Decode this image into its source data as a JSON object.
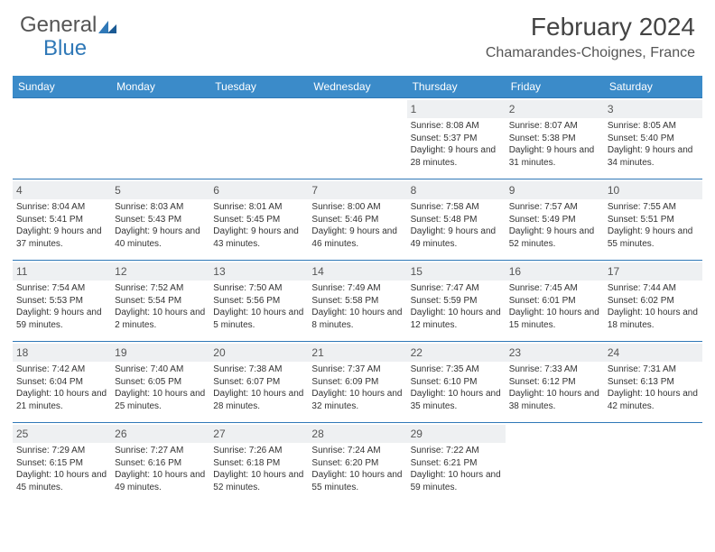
{
  "brand": {
    "left": "General",
    "right": "Blue"
  },
  "title": "February 2024",
  "location": "Chamarandes-Choignes, France",
  "colors": {
    "header_bg": "#3b8bc9",
    "border": "#2f78b7",
    "daynum_bg": "#eef0f2",
    "text": "#333333"
  },
  "dayHeaders": [
    "Sunday",
    "Monday",
    "Tuesday",
    "Wednesday",
    "Thursday",
    "Friday",
    "Saturday"
  ],
  "startOffset": 4,
  "days": [
    {
      "n": "1",
      "sr": "Sunrise: 8:08 AM",
      "ss": "Sunset: 5:37 PM",
      "dl": "Daylight: 9 hours and 28 minutes."
    },
    {
      "n": "2",
      "sr": "Sunrise: 8:07 AM",
      "ss": "Sunset: 5:38 PM",
      "dl": "Daylight: 9 hours and 31 minutes."
    },
    {
      "n": "3",
      "sr": "Sunrise: 8:05 AM",
      "ss": "Sunset: 5:40 PM",
      "dl": "Daylight: 9 hours and 34 minutes."
    },
    {
      "n": "4",
      "sr": "Sunrise: 8:04 AM",
      "ss": "Sunset: 5:41 PM",
      "dl": "Daylight: 9 hours and 37 minutes."
    },
    {
      "n": "5",
      "sr": "Sunrise: 8:03 AM",
      "ss": "Sunset: 5:43 PM",
      "dl": "Daylight: 9 hours and 40 minutes."
    },
    {
      "n": "6",
      "sr": "Sunrise: 8:01 AM",
      "ss": "Sunset: 5:45 PM",
      "dl": "Daylight: 9 hours and 43 minutes."
    },
    {
      "n": "7",
      "sr": "Sunrise: 8:00 AM",
      "ss": "Sunset: 5:46 PM",
      "dl": "Daylight: 9 hours and 46 minutes."
    },
    {
      "n": "8",
      "sr": "Sunrise: 7:58 AM",
      "ss": "Sunset: 5:48 PM",
      "dl": "Daylight: 9 hours and 49 minutes."
    },
    {
      "n": "9",
      "sr": "Sunrise: 7:57 AM",
      "ss": "Sunset: 5:49 PM",
      "dl": "Daylight: 9 hours and 52 minutes."
    },
    {
      "n": "10",
      "sr": "Sunrise: 7:55 AM",
      "ss": "Sunset: 5:51 PM",
      "dl": "Daylight: 9 hours and 55 minutes."
    },
    {
      "n": "11",
      "sr": "Sunrise: 7:54 AM",
      "ss": "Sunset: 5:53 PM",
      "dl": "Daylight: 9 hours and 59 minutes."
    },
    {
      "n": "12",
      "sr": "Sunrise: 7:52 AM",
      "ss": "Sunset: 5:54 PM",
      "dl": "Daylight: 10 hours and 2 minutes."
    },
    {
      "n": "13",
      "sr": "Sunrise: 7:50 AM",
      "ss": "Sunset: 5:56 PM",
      "dl": "Daylight: 10 hours and 5 minutes."
    },
    {
      "n": "14",
      "sr": "Sunrise: 7:49 AM",
      "ss": "Sunset: 5:58 PM",
      "dl": "Daylight: 10 hours and 8 minutes."
    },
    {
      "n": "15",
      "sr": "Sunrise: 7:47 AM",
      "ss": "Sunset: 5:59 PM",
      "dl": "Daylight: 10 hours and 12 minutes."
    },
    {
      "n": "16",
      "sr": "Sunrise: 7:45 AM",
      "ss": "Sunset: 6:01 PM",
      "dl": "Daylight: 10 hours and 15 minutes."
    },
    {
      "n": "17",
      "sr": "Sunrise: 7:44 AM",
      "ss": "Sunset: 6:02 PM",
      "dl": "Daylight: 10 hours and 18 minutes."
    },
    {
      "n": "18",
      "sr": "Sunrise: 7:42 AM",
      "ss": "Sunset: 6:04 PM",
      "dl": "Daylight: 10 hours and 21 minutes."
    },
    {
      "n": "19",
      "sr": "Sunrise: 7:40 AM",
      "ss": "Sunset: 6:05 PM",
      "dl": "Daylight: 10 hours and 25 minutes."
    },
    {
      "n": "20",
      "sr": "Sunrise: 7:38 AM",
      "ss": "Sunset: 6:07 PM",
      "dl": "Daylight: 10 hours and 28 minutes."
    },
    {
      "n": "21",
      "sr": "Sunrise: 7:37 AM",
      "ss": "Sunset: 6:09 PM",
      "dl": "Daylight: 10 hours and 32 minutes."
    },
    {
      "n": "22",
      "sr": "Sunrise: 7:35 AM",
      "ss": "Sunset: 6:10 PM",
      "dl": "Daylight: 10 hours and 35 minutes."
    },
    {
      "n": "23",
      "sr": "Sunrise: 7:33 AM",
      "ss": "Sunset: 6:12 PM",
      "dl": "Daylight: 10 hours and 38 minutes."
    },
    {
      "n": "24",
      "sr": "Sunrise: 7:31 AM",
      "ss": "Sunset: 6:13 PM",
      "dl": "Daylight: 10 hours and 42 minutes."
    },
    {
      "n": "25",
      "sr": "Sunrise: 7:29 AM",
      "ss": "Sunset: 6:15 PM",
      "dl": "Daylight: 10 hours and 45 minutes."
    },
    {
      "n": "26",
      "sr": "Sunrise: 7:27 AM",
      "ss": "Sunset: 6:16 PM",
      "dl": "Daylight: 10 hours and 49 minutes."
    },
    {
      "n": "27",
      "sr": "Sunrise: 7:26 AM",
      "ss": "Sunset: 6:18 PM",
      "dl": "Daylight: 10 hours and 52 minutes."
    },
    {
      "n": "28",
      "sr": "Sunrise: 7:24 AM",
      "ss": "Sunset: 6:20 PM",
      "dl": "Daylight: 10 hours and 55 minutes."
    },
    {
      "n": "29",
      "sr": "Sunrise: 7:22 AM",
      "ss": "Sunset: 6:21 PM",
      "dl": "Daylight: 10 hours and 59 minutes."
    }
  ]
}
